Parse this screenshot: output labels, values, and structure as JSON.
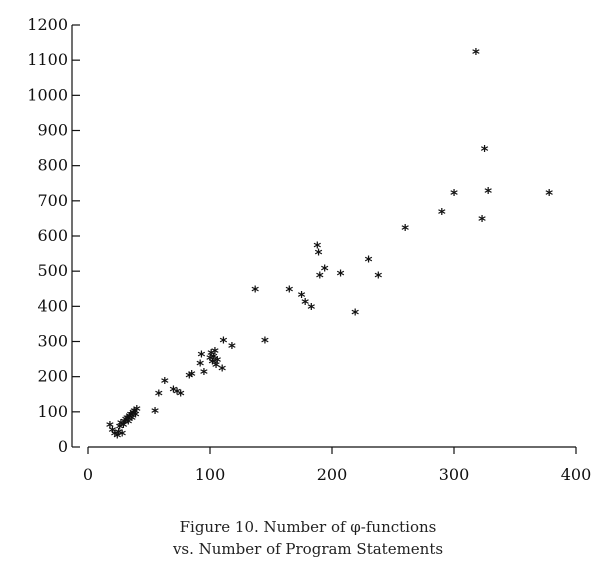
{
  "caption": {
    "line1": "Figure 10. Number of φ-functions",
    "line2": "vs. Number of Program Statements"
  },
  "chart_data": {
    "type": "scatter",
    "marker": "*",
    "title": "",
    "xlabel": "",
    "ylabel": "",
    "xlim": [
      0,
      400
    ],
    "ylim": [
      0,
      1200
    ],
    "xticks": [
      0,
      100,
      200,
      300,
      400
    ],
    "yticks": [
      0,
      100,
      200,
      300,
      400,
      500,
      600,
      700,
      800,
      900,
      1000,
      1100,
      1200
    ],
    "grid": false,
    "x": [
      18,
      20,
      22,
      24,
      25,
      26,
      27,
      28,
      29,
      30,
      31,
      32,
      33,
      34,
      35,
      36,
      37,
      38,
      39,
      40,
      55,
      58,
      63,
      70,
      73,
      76,
      83,
      85,
      92,
      93,
      95,
      100,
      101,
      102,
      103,
      104,
      105,
      106,
      110,
      111,
      118,
      137,
      145,
      165,
      175,
      178,
      183,
      188,
      189,
      190,
      194,
      207,
      219,
      230,
      238,
      260,
      290,
      300,
      318,
      323,
      325,
      328,
      378
    ],
    "y": [
      60,
      45,
      35,
      30,
      40,
      55,
      65,
      35,
      60,
      70,
      75,
      80,
      70,
      85,
      90,
      80,
      95,
      100,
      90,
      105,
      100,
      150,
      185,
      160,
      155,
      150,
      200,
      205,
      235,
      260,
      210,
      250,
      265,
      240,
      255,
      270,
      230,
      245,
      220,
      300,
      285,
      445,
      300,
      445,
      430,
      410,
      395,
      570,
      550,
      485,
      505,
      490,
      380,
      530,
      485,
      620,
      665,
      720,
      1120,
      645,
      845,
      725,
      720
    ]
  }
}
